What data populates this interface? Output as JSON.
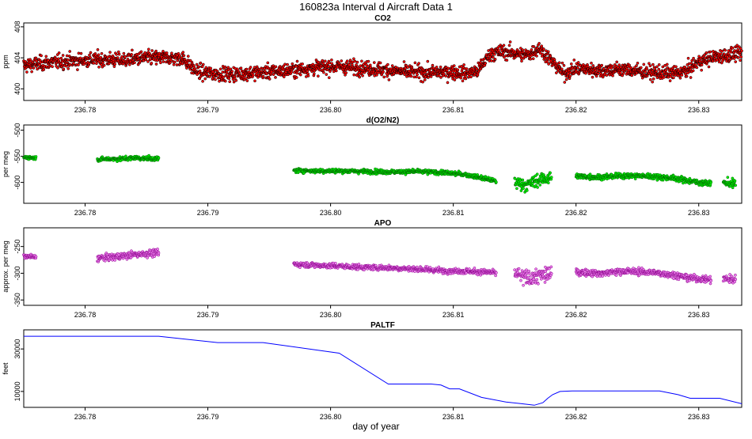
{
  "figure": {
    "title": "160823a   Interval d Aircraft Data 1",
    "xlabel": "day of year"
  },
  "chart_data": [
    {
      "type": "scatter",
      "title": "CO2",
      "ylabel": "ppm",
      "xlim": [
        236.775,
        236.8335
      ],
      "ylim": [
        398.5,
        408.5
      ],
      "xticks": [
        236.78,
        236.79,
        236.8,
        236.81,
        236.82,
        236.83
      ],
      "xtick_labels": [
        "236.78",
        "236.79",
        "236.80",
        "236.81",
        "236.82",
        "236.83"
      ],
      "yticks": [
        400,
        404,
        408
      ],
      "ytick_labels": [
        "400",
        "404",
        "408"
      ],
      "color": "#ff0000",
      "edge_color": "#000000",
      "grid": false,
      "series": [
        {
          "x": [
            236.775,
            236.777,
            236.779,
            236.781,
            236.783,
            236.785,
            236.787,
            236.788,
            236.789,
            236.79,
            236.792,
            236.794,
            236.796,
            236.798,
            236.8,
            236.802,
            236.804,
            236.806,
            236.808,
            236.81,
            236.811,
            236.812,
            236.813,
            236.814,
            236.815,
            236.816,
            236.817,
            236.818,
            236.819,
            236.82,
            236.822,
            236.824,
            236.826,
            236.828,
            236.829,
            236.83,
            236.831,
            236.832,
            236.8335
          ],
          "y": [
            403.0,
            403.4,
            403.6,
            403.8,
            403.7,
            404.0,
            404.0,
            403.9,
            402.3,
            402.0,
            401.9,
            402.1,
            402.3,
            402.6,
            402.9,
            402.8,
            402.5,
            402.2,
            402.1,
            402.2,
            402.0,
            402.3,
            404.5,
            404.8,
            404.6,
            404.3,
            405.3,
            403.6,
            402.0,
            402.6,
            402.4,
            402.5,
            402.1,
            402.0,
            402.3,
            403.5,
            404.0,
            404.3,
            404.5
          ],
          "scatter": 0.9
        }
      ]
    },
    {
      "type": "scatter",
      "title": "d(O2/N2)",
      "ylabel": "per meg",
      "xlim": [
        236.775,
        236.8335
      ],
      "ylim": [
        -640,
        -490
      ],
      "xticks": [
        236.78,
        236.79,
        236.8,
        236.81,
        236.82,
        236.83
      ],
      "xtick_labels": [
        "236.78",
        "236.79",
        "236.80",
        "236.81",
        "236.82",
        "236.83"
      ],
      "yticks": [
        -500,
        -550,
        -600
      ],
      "ytick_labels": [
        "-500",
        "-550",
        "-600"
      ],
      "color": "#00ee00",
      "edge_color": "#006600",
      "grid": false,
      "series": [
        {
          "x": [
            236.775,
            236.776
          ],
          "y": [
            -552,
            -553
          ],
          "scatter": 3
        },
        {
          "x": [
            236.781,
            236.782,
            236.783,
            236.784,
            236.785,
            236.786
          ],
          "y": [
            -556,
            -555,
            -555,
            -553,
            -554,
            -555
          ],
          "scatter": 4
        },
        {
          "x": [
            236.797,
            236.799,
            236.801,
            236.803,
            236.805,
            236.807,
            236.809,
            236.811,
            236.812,
            236.813,
            236.8135
          ],
          "y": [
            -577,
            -578,
            -578,
            -579,
            -580,
            -579,
            -581,
            -585,
            -590,
            -595,
            -598
          ],
          "scatter": 4
        },
        {
          "x": [
            236.815,
            236.816,
            236.817,
            236.818
          ],
          "y": [
            -600,
            -605,
            -595,
            -590
          ],
          "scatter": 12
        },
        {
          "x": [
            236.82,
            236.822,
            236.824,
            236.826,
            236.828,
            236.829,
            236.83,
            236.831
          ],
          "y": [
            -588,
            -590,
            -587,
            -588,
            -592,
            -596,
            -600,
            -602
          ],
          "scatter": 5
        },
        {
          "x": [
            236.832,
            236.833
          ],
          "y": [
            -600,
            -603
          ],
          "scatter": 8
        }
      ]
    },
    {
      "type": "scatter",
      "title": "APO",
      "ylabel": "approx. per meg",
      "xlim": [
        236.775,
        236.8335
      ],
      "ylim": [
        -360,
        -215
      ],
      "xticks": [
        236.78,
        236.79,
        236.8,
        236.81,
        236.82,
        236.83
      ],
      "xtick_labels": [
        "236.78",
        "236.79",
        "236.80",
        "236.81",
        "236.82",
        "236.83"
      ],
      "yticks": [
        -250,
        -300,
        -350
      ],
      "ytick_labels": [
        "-250",
        "-300",
        "-350"
      ],
      "color": "#ee82ee",
      "edge_color": "#8b008b",
      "grid": false,
      "series": [
        {
          "x": [
            236.775,
            236.776
          ],
          "y": [
            -268,
            -270
          ],
          "scatter": 4
        },
        {
          "x": [
            236.781,
            236.782,
            236.783,
            236.784,
            236.785,
            236.786
          ],
          "y": [
            -272,
            -270,
            -268,
            -265,
            -263,
            -262
          ],
          "scatter": 6
        },
        {
          "x": [
            236.797,
            236.799,
            236.801,
            236.803,
            236.805,
            236.807,
            236.809,
            236.811,
            236.813,
            236.8135
          ],
          "y": [
            -283,
            -285,
            -287,
            -289,
            -290,
            -292,
            -295,
            -296,
            -298,
            -300
          ],
          "scatter": 5
        },
        {
          "x": [
            236.815,
            236.816,
            236.817,
            236.818
          ],
          "y": [
            -300,
            -310,
            -305,
            -300
          ],
          "scatter": 15
        },
        {
          "x": [
            236.82,
            236.822,
            236.824,
            236.826,
            236.828,
            236.829,
            236.83,
            236.831
          ],
          "y": [
            -298,
            -300,
            -296,
            -298,
            -303,
            -308,
            -310,
            -312
          ],
          "scatter": 6
        },
        {
          "x": [
            236.832,
            236.833
          ],
          "y": [
            -310,
            -312
          ],
          "scatter": 9
        }
      ]
    },
    {
      "type": "line",
      "title": "PALTF",
      "ylabel": "feet",
      "xlim": [
        236.775,
        236.8335
      ],
      "ylim": [
        2500,
        39000
      ],
      "xticks": [
        236.78,
        236.79,
        236.8,
        236.81,
        236.82,
        236.83
      ],
      "xtick_labels": [
        "236.78",
        "236.79",
        "236.80",
        "236.81",
        "236.82",
        "236.83"
      ],
      "yticks": [
        10000,
        30000
      ],
      "ytick_labels": [
        "10000",
        "30000"
      ],
      "color": "#0000ff",
      "grid": false,
      "series": [
        {
          "x": [
            236.775,
            236.786,
            236.7908,
            236.7945,
            236.8007,
            236.8047,
            236.8082,
            236.809,
            236.8097,
            236.8105,
            236.8123,
            236.8143,
            236.8155,
            236.8166,
            236.8173,
            236.8177,
            236.8181,
            236.8187,
            236.8197,
            236.8215,
            236.8225,
            236.8268,
            236.8283,
            236.8293,
            236.8303,
            236.8317,
            236.8335
          ],
          "y": [
            36000,
            36000,
            33000,
            33000,
            28000,
            13500,
            13500,
            13000,
            11200,
            11200,
            7200,
            5000,
            4300,
            3500,
            4700,
            6800,
            8500,
            10000,
            10200,
            10200,
            10200,
            10200,
            8500,
            6800,
            6800,
            6800,
            4200
          ]
        }
      ]
    }
  ]
}
